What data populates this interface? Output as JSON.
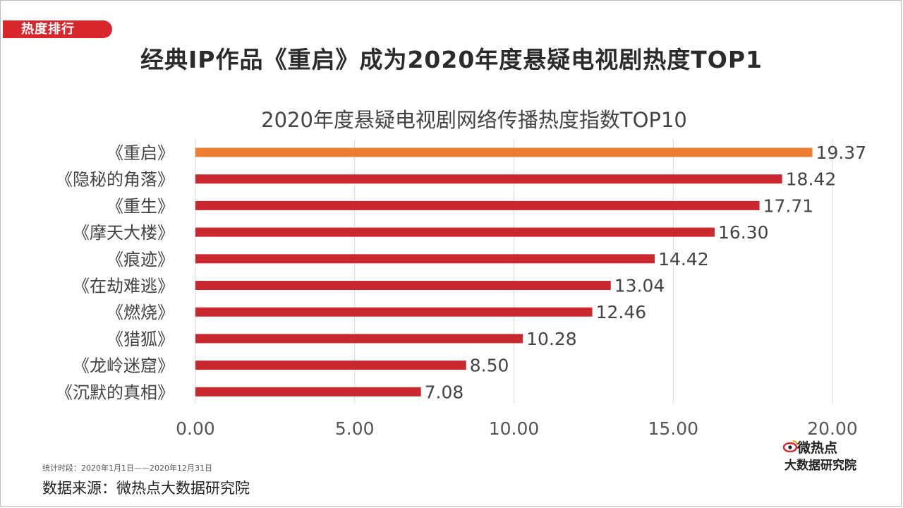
{
  "tag": "热度排行",
  "headline": "经典IP作品《重启》成为2020年度悬疑电视剧热度TOP1",
  "footer": {
    "period": "统计时段：2020年1月1日——2020年12月31日",
    "source": "数据来源：微热点大数据研究院"
  },
  "logo": {
    "line1": "微热点",
    "line2": "大数据研究院"
  },
  "colors": {
    "accent": "#d8262c",
    "highlight": "#ed7d31",
    "bar": "#c8282e"
  },
  "chart_data": {
    "type": "bar",
    "orientation": "horizontal",
    "title": "2020年度悬疑电视剧网络传播热度指数TOP10",
    "categories": [
      "《重启》",
      "《隐秘的角落》",
      "《重生》",
      "《摩天大楼》",
      "《痕迹》",
      "《在劫难逃》",
      "《燃烧》",
      "《猎狐》",
      "《龙岭迷窟》",
      "《沉默的真相》"
    ],
    "values": [
      19.37,
      18.42,
      17.71,
      16.3,
      14.42,
      13.04,
      12.46,
      10.28,
      8.5,
      7.08
    ],
    "value_labels": [
      "19.37",
      "18.42",
      "17.71",
      "16.30",
      "14.42",
      "13.04",
      "12.46",
      "10.28",
      "8.50",
      "7.08"
    ],
    "xlim": [
      0,
      20
    ],
    "xticks": [
      "0.00",
      "5.00",
      "10.00",
      "15.00",
      "20.00"
    ],
    "highlight_index": 0,
    "grid": "vertical",
    "legend": "none"
  }
}
